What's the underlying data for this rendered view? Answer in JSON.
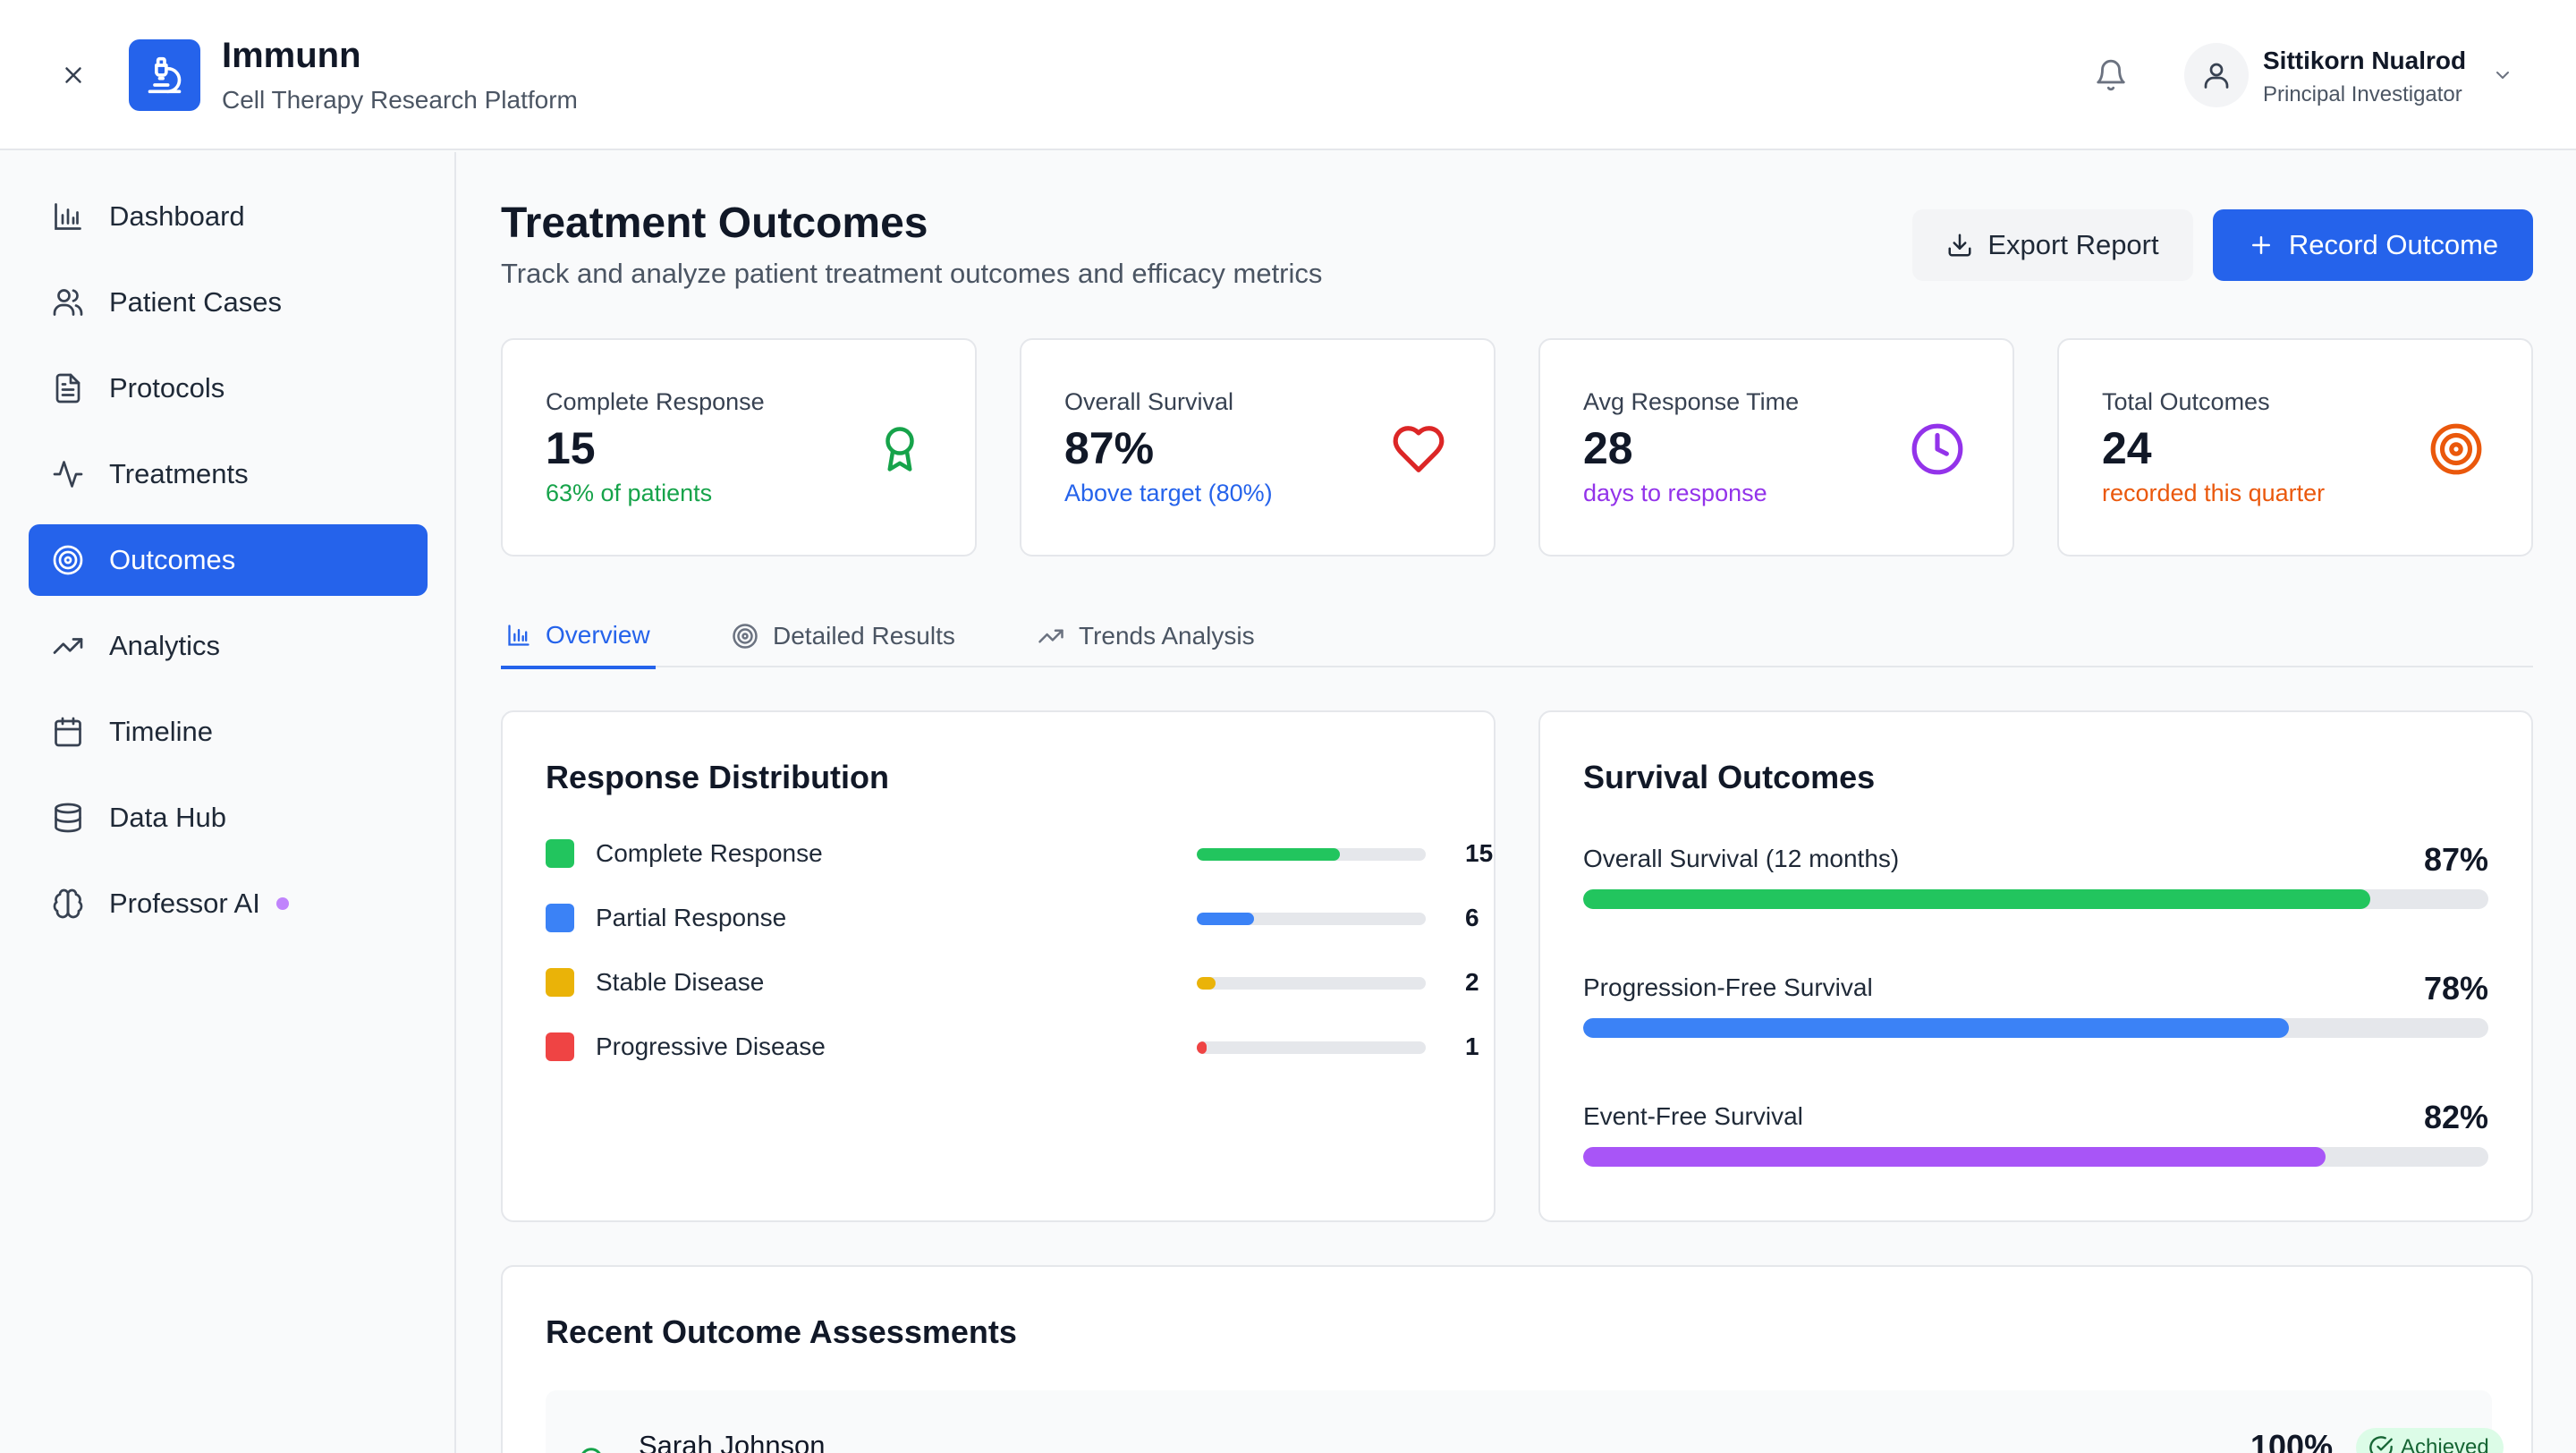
{
  "app": {
    "title": "Immunn",
    "subtitle": "Cell Therapy Research Platform"
  },
  "user": {
    "name": "Sittikorn Nualrod",
    "role": "Principal Investigator"
  },
  "sidebar": {
    "items": [
      {
        "label": "Dashboard",
        "icon": "bar-chart-icon",
        "active": false
      },
      {
        "label": "Patient Cases",
        "icon": "users-icon",
        "active": false
      },
      {
        "label": "Protocols",
        "icon": "document-icon",
        "active": false
      },
      {
        "label": "Treatments",
        "icon": "activity-icon",
        "active": false
      },
      {
        "label": "Outcomes",
        "icon": "target-icon",
        "active": true
      },
      {
        "label": "Analytics",
        "icon": "trending-up-icon",
        "active": false
      },
      {
        "label": "Timeline",
        "icon": "calendar-icon",
        "active": false
      },
      {
        "label": "Data Hub",
        "icon": "database-icon",
        "active": false
      },
      {
        "label": "Professor AI",
        "icon": "brain-icon",
        "active": false
      }
    ]
  },
  "page": {
    "title": "Treatment Outcomes",
    "subtitle": "Track and analyze patient treatment outcomes and efficacy metrics",
    "export_label": "Export Report",
    "record_label": "Record Outcome"
  },
  "stats": [
    {
      "label": "Complete Response",
      "value": "15",
      "note": "63% of patients",
      "note_color": "#16a34a",
      "icon": "award-icon",
      "icon_color": "#16a34a"
    },
    {
      "label": "Overall Survival",
      "value": "87%",
      "note": "Above target (80%)",
      "note_color": "#2563eb",
      "icon": "heart-icon",
      "icon_color": "#dc2626"
    },
    {
      "label": "Avg Response Time",
      "value": "28",
      "note": "days to response",
      "note_color": "#9333ea",
      "icon": "clock-icon",
      "icon_color": "#9333ea"
    },
    {
      "label": "Total Outcomes",
      "value": "24",
      "note": "recorded this quarter",
      "note_color": "#ea580c",
      "icon": "target-icon",
      "icon_color": "#ea580c"
    }
  ],
  "tabs": [
    {
      "label": "Overview",
      "icon": "bar-chart-icon",
      "active": true
    },
    {
      "label": "Detailed Results",
      "icon": "target-icon",
      "active": false
    },
    {
      "label": "Trends Analysis",
      "icon": "trending-up-icon",
      "active": false
    }
  ],
  "response_distribution": {
    "title": "Response Distribution",
    "items": [
      {
        "label": "Complete Response",
        "count": "15",
        "fraction": 0.625,
        "color": "#22c55e"
      },
      {
        "label": "Partial Response",
        "count": "6",
        "fraction": 0.25,
        "color": "#3b82f6"
      },
      {
        "label": "Stable Disease",
        "count": "2",
        "fraction": 0.083,
        "color": "#eab308"
      },
      {
        "label": "Progressive Disease",
        "count": "1",
        "fraction": 0.042,
        "color": "#ef4444"
      }
    ]
  },
  "survival_outcomes": {
    "title": "Survival Outcomes",
    "items": [
      {
        "label": "Overall Survival (12 months)",
        "pct": "87%",
        "fraction": 0.87,
        "color": "#22c55e"
      },
      {
        "label": "Progression-Free Survival",
        "pct": "78%",
        "fraction": 0.78,
        "color": "#3b82f6"
      },
      {
        "label": "Event-Free Survival",
        "pct": "82%",
        "fraction": 0.82,
        "color": "#a855f7"
      }
    ]
  },
  "recent_assessments": {
    "title": "Recent Outcome Assessments",
    "rows": [
      {
        "name": "Sarah Johnson",
        "pct": "100%",
        "status": "Achieved",
        "status_color": "#166534"
      }
    ]
  }
}
